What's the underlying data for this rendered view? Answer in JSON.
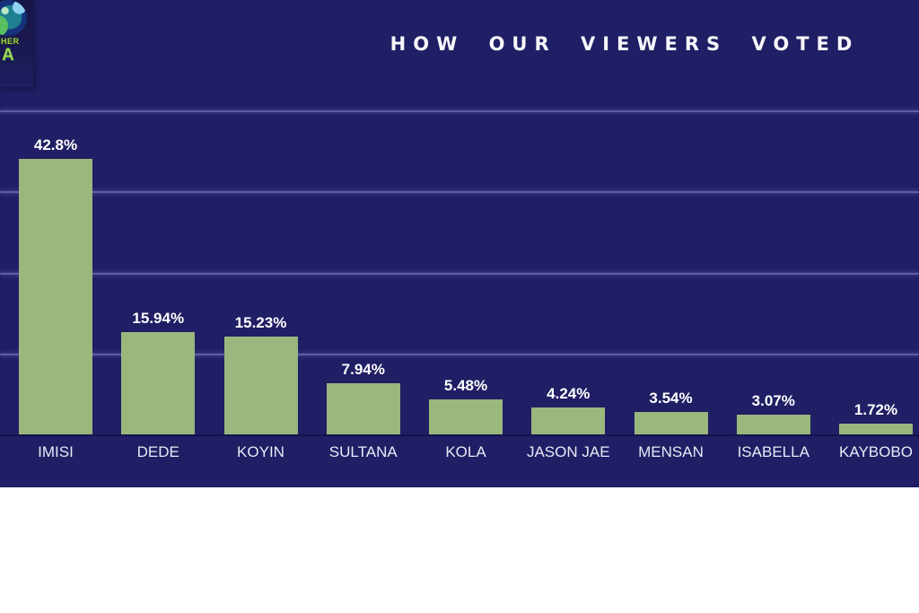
{
  "logo": {
    "icon": "bbnaija-eye-icon",
    "fragment_line1": "HER",
    "fragment_line2": "A",
    "text_color": "#9fce3e"
  },
  "chart_data": {
    "type": "bar",
    "title": "HOW OUR VIEWERS VOTED",
    "categories": [
      "IMISI",
      "DEDE",
      "KOYIN",
      "SULTANA",
      "KOLA",
      "JASON JAE",
      "MENSAN",
      "ISABELLA",
      "KAYBOBO"
    ],
    "values": [
      42.8,
      15.94,
      15.23,
      7.94,
      5.48,
      4.24,
      3.54,
      3.07,
      1.72
    ],
    "value_labels": [
      "42.8%",
      "15.94%",
      "15.23%",
      "7.94%",
      "5.48%",
      "4.24%",
      "3.54%",
      "3.07%",
      "1.72%"
    ],
    "xlabel": "",
    "ylabel": "",
    "ylim": [
      0,
      50.35
    ],
    "grid": true,
    "gridline_count": 5,
    "legend": false,
    "colors": {
      "bar": "#9ab77e",
      "panel_background": "#201e64",
      "gridline": "#6b6aad",
      "title_text": "#f8f8fc",
      "value_label_text": "#ffffff",
      "category_label_text": "#e8eaf6"
    }
  }
}
